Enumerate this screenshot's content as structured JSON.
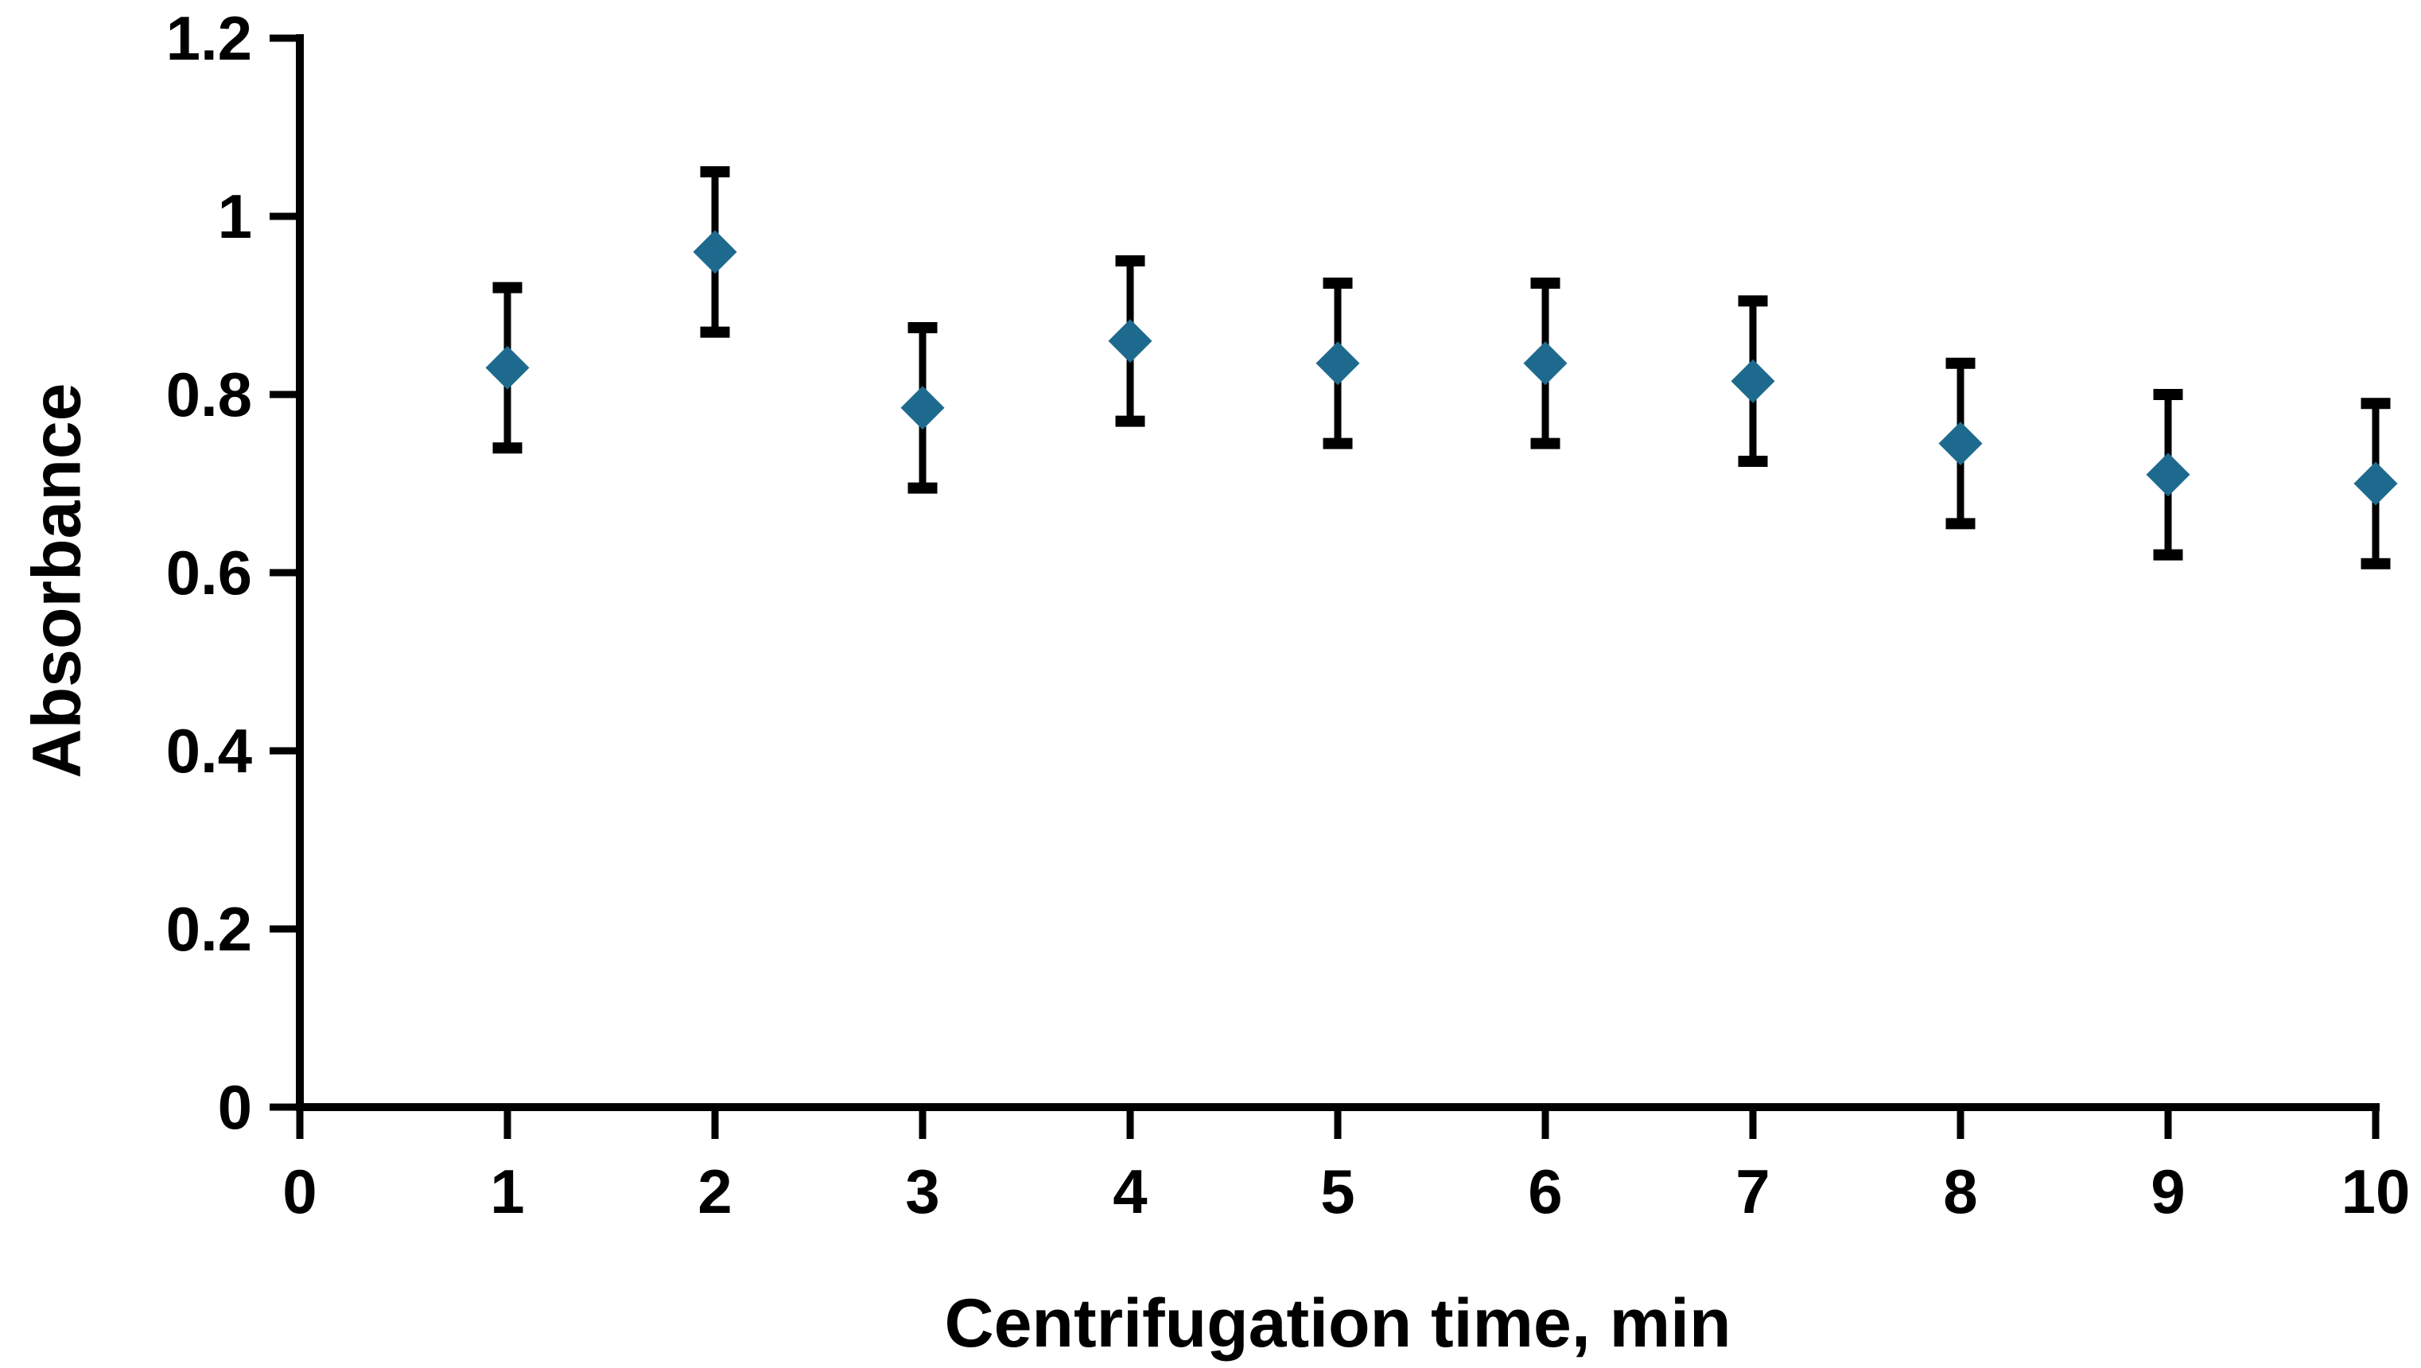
{
  "chart_data": {
    "type": "scatter",
    "title": "",
    "xlabel": "Centrifugation time, min",
    "ylabel": "Absorbance",
    "x": [
      1,
      2,
      3,
      4,
      5,
      6,
      7,
      8,
      9,
      10
    ],
    "y": [
      0.83,
      0.96,
      0.785,
      0.86,
      0.835,
      0.835,
      0.815,
      0.745,
      0.71,
      0.7
    ],
    "y_error": [
      0.09,
      0.09,
      0.09,
      0.09,
      0.09,
      0.09,
      0.09,
      0.09,
      0.09,
      0.09
    ],
    "xticks": [
      "0",
      "1",
      "2",
      "3",
      "4",
      "5",
      "6",
      "7",
      "8",
      "9",
      "10"
    ],
    "yticks": [
      "0",
      "0.2",
      "0.4",
      "0.6",
      "0.8",
      "1",
      "1.2"
    ],
    "xlim": [
      0,
      10
    ],
    "ylim": [
      0,
      1.2
    ],
    "grid": false,
    "legend": null,
    "marker": "diamond",
    "marker_color": "#1e6a8e",
    "error_bar_color": "#000000",
    "axis_color": "#000000",
    "background_color": "#ffffff"
  }
}
